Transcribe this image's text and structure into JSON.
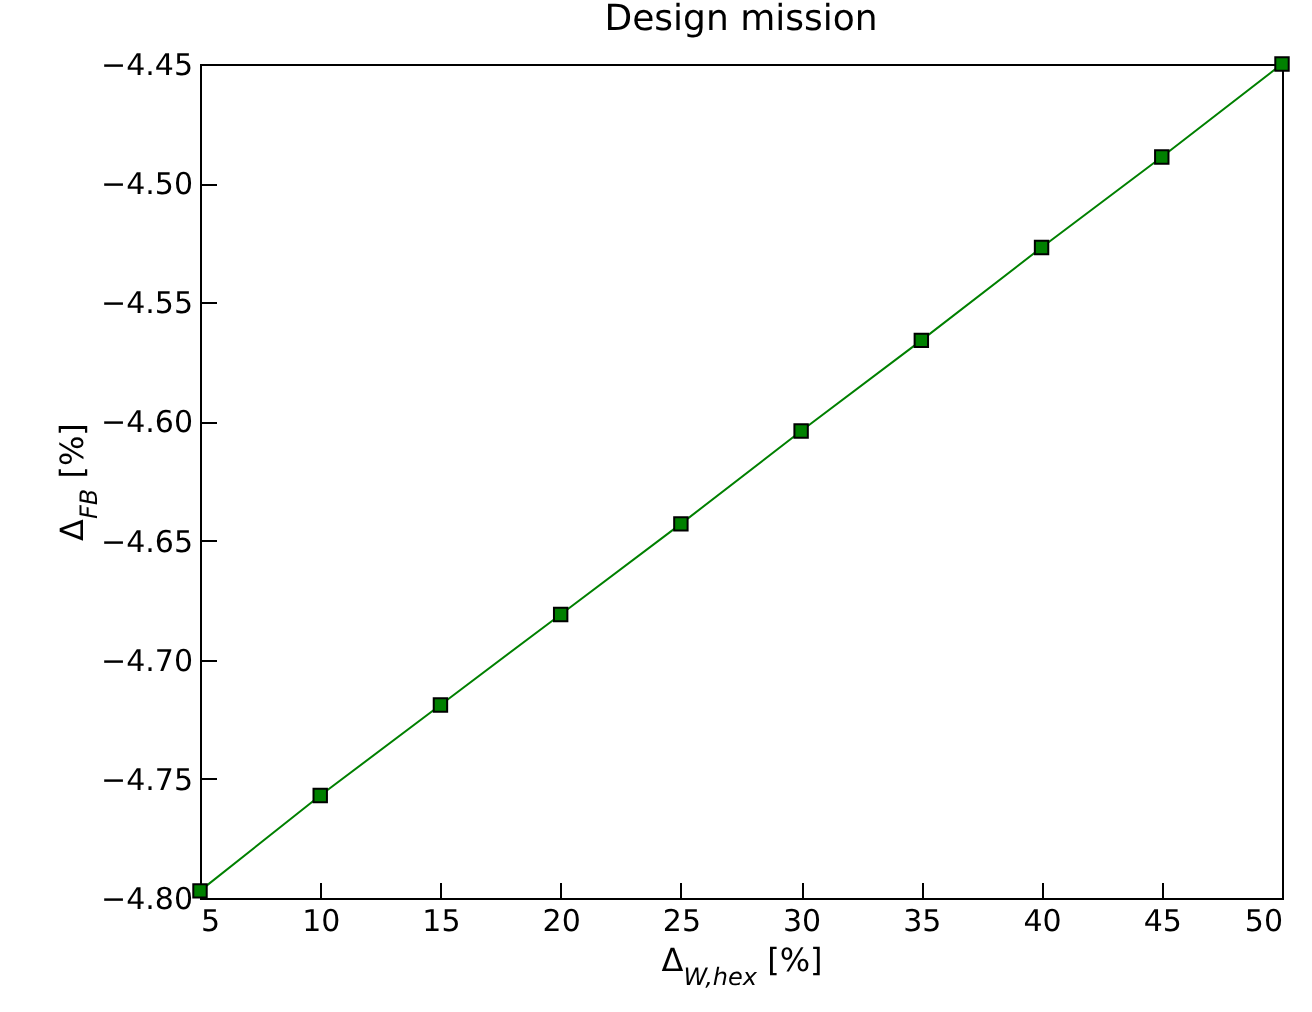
{
  "chart_data": {
    "type": "line",
    "title": "Design mission",
    "xlabel": "Δ$_{W,hex}$ [%]",
    "ylabel": "Δ$_{FB}$ [%]",
    "x": [
      5,
      10,
      15,
      20,
      25,
      30,
      35,
      40,
      45,
      50
    ],
    "series": [
      {
        "color": "#008000",
        "values": [
          -4.797,
          -4.757,
          -4.719,
          -4.681,
          -4.643,
          -4.604,
          -4.566,
          -4.527,
          -4.489,
          -4.45
        ]
      }
    ],
    "xlim": [
      5,
      50
    ],
    "xticks": [
      5,
      10,
      15,
      20,
      25,
      30,
      35,
      40,
      45,
      50
    ],
    "ylim": [
      -4.8,
      -4.45
    ],
    "yticks": [
      {
        "value": -4.8,
        "label": "−4.80"
      },
      {
        "value": -4.75,
        "label": "−4.75"
      },
      {
        "value": -4.7,
        "label": "−4.70"
      },
      {
        "value": -4.65,
        "label": "−4.65"
      },
      {
        "value": -4.6,
        "label": "−4.60"
      },
      {
        "value": -4.55,
        "label": "−4.55"
      },
      {
        "value": -4.5,
        "label": "−4.50"
      },
      {
        "value": -4.45,
        "label": "−4.45"
      }
    ],
    "marker": "square",
    "line_style": "solid",
    "grid": false
  }
}
